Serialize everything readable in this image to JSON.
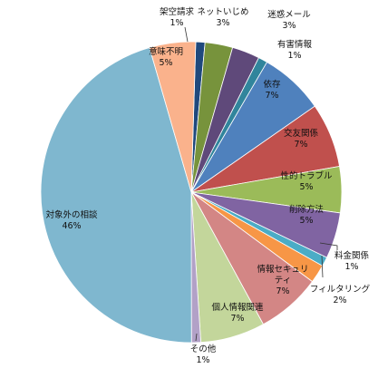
{
  "chart_data": {
    "type": "pie",
    "title": "",
    "slices": [
      {
        "name": "架空請求",
        "pct_label": "1%",
        "value": 1.0,
        "color": "#1f497d",
        "label_lines": [
          "架空請求"
        ]
      },
      {
        "name": "ネットいじめ",
        "pct_label": "3%",
        "value": 3.0,
        "color": "#77933c",
        "label_lines": [
          "ネットいじめ"
        ]
      },
      {
        "name": "迷惑メール",
        "pct_label": "3%",
        "value": 3.0,
        "color": "#5f497a",
        "label_lines": [
          "迷惑メール"
        ]
      },
      {
        "name": "有害情報",
        "pct_label": "1%",
        "value": 1.0,
        "color": "#31859c",
        "label_lines": [
          "有害情報"
        ]
      },
      {
        "name": "依存",
        "pct_label": "7%",
        "value": 7.0,
        "color": "#4f81bd",
        "label_lines": [
          "依存"
        ]
      },
      {
        "name": "交友関係",
        "pct_label": "7%",
        "value": 7.0,
        "color": "#c0504d",
        "label_lines": [
          "交友関係"
        ]
      },
      {
        "name": "性的トラブル",
        "pct_label": "5%",
        "value": 5.0,
        "color": "#9bbb59",
        "label_lines": [
          "性的トラブル"
        ]
      },
      {
        "name": "削除方法",
        "pct_label": "5%",
        "value": 5.0,
        "color": "#8064a2",
        "label_lines": [
          "削除方法"
        ]
      },
      {
        "name": "料金関係",
        "pct_label": "1%",
        "value": 1.0,
        "color": "#4bacc6",
        "label_lines": [
          "料金関係"
        ]
      },
      {
        "name": "フィルタリング",
        "pct_label": "2%",
        "value": 2.0,
        "color": "#f79646",
        "label_lines": [
          "フィルタリング"
        ]
      },
      {
        "name": "情報セキュリティ",
        "pct_label": "7%",
        "value": 7.0,
        "color": "#d38685",
        "label_lines": [
          "情報セキュリ",
          "ティ"
        ]
      },
      {
        "name": "個人情報関連",
        "pct_label": "7%",
        "value": 7.0,
        "color": "#c3d69b",
        "label_lines": [
          "個人情報関連"
        ]
      },
      {
        "name": "その他",
        "pct_label": "1%",
        "value": 1.0,
        "color": "#b2a1c7",
        "label_lines": [
          "その他"
        ]
      },
      {
        "name": "対象外の相談",
        "pct_label": "46%",
        "value": 46.0,
        "color": "#7fb7cf",
        "label_lines": [
          "対象外の相談"
        ]
      },
      {
        "name": "意味不明",
        "pct_label": "5%",
        "value": 5.0,
        "color": "#fab28c",
        "label_lines": [
          "意味不明"
        ]
      }
    ]
  }
}
